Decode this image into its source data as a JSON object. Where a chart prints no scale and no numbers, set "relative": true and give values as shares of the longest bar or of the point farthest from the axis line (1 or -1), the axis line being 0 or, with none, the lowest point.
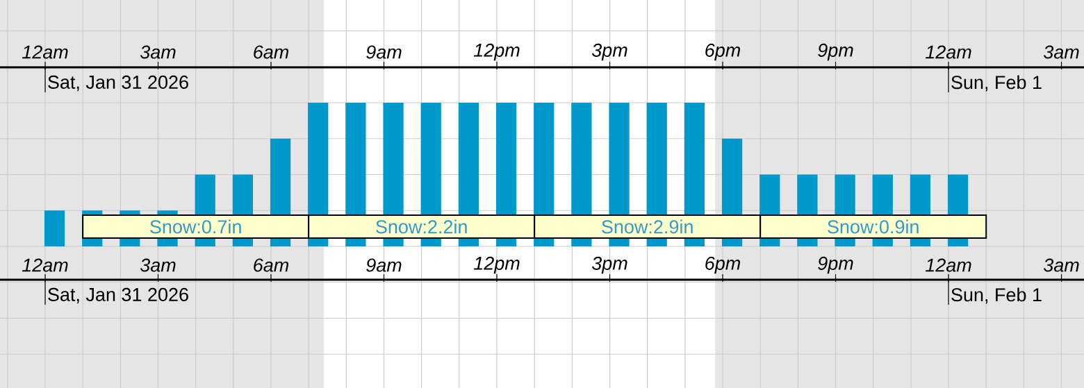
{
  "chart_data": {
    "type": "bar",
    "relative": true,
    "color": "#0099cc",
    "grid": true,
    "x": [
      "2026-01-31T00:15",
      "2026-01-31T01:15",
      "2026-01-31T02:15",
      "2026-01-31T03:15",
      "2026-01-31T04:15",
      "2026-01-31T05:15",
      "2026-01-31T06:15",
      "2026-01-31T07:15",
      "2026-01-31T08:15",
      "2026-01-31T09:15",
      "2026-01-31T10:15",
      "2026-01-31T11:15",
      "2026-01-31T12:15",
      "2026-01-31T13:15",
      "2026-01-31T14:15",
      "2026-01-31T15:15",
      "2026-01-31T16:15",
      "2026-01-31T17:15",
      "2026-01-31T18:15",
      "2026-01-31T19:15",
      "2026-01-31T20:15",
      "2026-01-31T21:15",
      "2026-01-31T22:15",
      "2026-01-31T23:15",
      "2026-02-01T00:15"
    ],
    "values": [
      0.25,
      0.25,
      0.25,
      0.25,
      0.5,
      0.5,
      0.75,
      1,
      1,
      1,
      1,
      1,
      1,
      1,
      1,
      1,
      1,
      1,
      0.75,
      0.5,
      0.5,
      0.5,
      0.5,
      0.5,
      0.5
    ],
    "xlim": [
      "2026-01-30T22:48",
      "2026-02-01T03:36"
    ],
    "xticks": [
      {
        "value": "2026-01-31T00:00",
        "label": "12am"
      },
      {
        "value": "2026-01-31T03:00",
        "label": "3am"
      },
      {
        "value": "2026-01-31T06:00",
        "label": "6am"
      },
      {
        "value": "2026-01-31T09:00",
        "label": "9am"
      },
      {
        "value": "2026-01-31T12:00",
        "label": "12pm"
      },
      {
        "value": "2026-01-31T15:00",
        "label": "3pm"
      },
      {
        "value": "2026-01-31T18:00",
        "label": "6pm"
      },
      {
        "value": "2026-01-31T21:00",
        "label": "9pm"
      },
      {
        "value": "2026-02-01T00:00",
        "label": "12am"
      },
      {
        "value": "2026-02-01T03:00",
        "label": "3am"
      }
    ],
    "x2lim": [
      "2026-01-30T22:48",
      "2026-02-01T03:36"
    ],
    "x2ticks": [
      {
        "value": "2026-01-31T00:00",
        "label": "12am"
      },
      {
        "value": "2026-01-31T03:00",
        "label": "3am"
      },
      {
        "value": "2026-01-31T06:00",
        "label": "6am"
      },
      {
        "value": "2026-01-31T09:00",
        "label": "9am"
      },
      {
        "value": "2026-01-31T12:00",
        "label": "12pm"
      },
      {
        "value": "2026-01-31T15:00",
        "label": "3pm"
      },
      {
        "value": "2026-01-31T18:00",
        "label": "6pm"
      },
      {
        "value": "2026-01-31T21:00",
        "label": "9pm"
      },
      {
        "value": "2026-02-01T00:00",
        "label": "12am"
      },
      {
        "value": "2026-02-01T03:00",
        "label": "3am"
      }
    ],
    "ref_lines": [
      {
        "axis": "x",
        "value": "2026-01-31T00:00",
        "label": "Sat, Jan 31 2026"
      },
      {
        "axis": "x",
        "value": "2026-02-01T00:00",
        "label": "Sun, Feb 1"
      }
    ],
    "bands": [
      {
        "axis": "x",
        "from": "2026-01-30T22:48",
        "to": "2026-01-31T07:24",
        "color": "#e5e5e5"
      },
      {
        "axis": "x",
        "from": "2026-01-31T17:48",
        "to": "2026-02-01T03:36",
        "color": "#e5e5e5"
      },
      {
        "axis": "x",
        "from": "2026-01-31T01:00",
        "to": "2026-01-31T07:00",
        "label": "Snow:0.7in",
        "color": "#ffffcc"
      },
      {
        "axis": "x",
        "from": "2026-01-31T07:00",
        "to": "2026-01-31T13:00",
        "label": "Snow:2.2in",
        "color": "#ffffcc"
      },
      {
        "axis": "x",
        "from": "2026-01-31T13:00",
        "to": "2026-01-31T19:00",
        "label": "Snow:2.9in",
        "color": "#ffffcc"
      },
      {
        "axis": "x",
        "from": "2026-01-31T19:00",
        "to": "2026-02-01T01:00",
        "label": "Snow:0.9in",
        "color": "#ffffcc"
      }
    ]
  }
}
